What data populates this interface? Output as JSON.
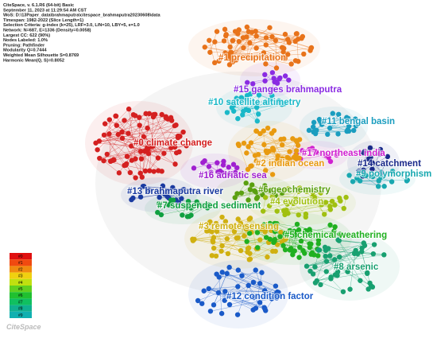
{
  "header": {
    "lines": [
      "CiteSpace, v. 6.1.R6 (64-bit) Basic",
      "September 11, 2023 at 11:29:54 AM CST",
      "WoS: D:\\13Paper_data\\brahmaputra\\citespace_brahmaputra20230608\\data",
      "Timespan: 1982-2022 (Slice Length=1)",
      "Selection Criteria: g-index (k=25), LRF=3.0, L/N=10, LBY=5, e=1.0",
      "Network: N=687, E=1336 (Density=0.0058)",
      "Largest CC: 622 (90%)",
      "Nodes Labeled: 1.0%",
      "Pruning: Pathfinder",
      "Modularity Q=0.7444",
      "Weighted Mean Silhouette S=0.8769",
      "Harmonic Mean(Q, S)=0.8052"
    ]
  },
  "clusters": [
    {
      "label": "#1 precipitation",
      "color": "#e8731a"
    },
    {
      "label": "#15 ganges brahmaputra",
      "color": "#8a2be2"
    },
    {
      "label": "#10 satellite altimetry",
      "color": "#1ab8c8"
    },
    {
      "label": "#0 climate change",
      "color": "#d42020"
    },
    {
      "label": "#11 bengal basin",
      "color": "#1a9dbf"
    },
    {
      "label": "#17 northeast india",
      "color": "#d020d0"
    },
    {
      "label": "#2 indian ocean",
      "color": "#e89a10"
    },
    {
      "label": "#14 catchment",
      "color": "#1a2a8a"
    },
    {
      "label": "#16 adriatic sea",
      "color": "#a020d0"
    },
    {
      "label": "#9 polymorphism",
      "color": "#18a8b0"
    },
    {
      "label": "#13 brahmaputra river",
      "color": "#1a3aa0"
    },
    {
      "label": "#6 geochemistry",
      "color": "#5aa010"
    },
    {
      "label": "#4 evolution",
      "color": "#a0c010"
    },
    {
      "label": "#7 suspended sediment",
      "color": "#10a040"
    },
    {
      "label": "#3 remote sensing",
      "color": "#d0b010"
    },
    {
      "label": "#5 chemical weathering",
      "color": "#20b020"
    },
    {
      "label": "#8 arsenic",
      "color": "#18a070"
    },
    {
      "label": "#12 condition factor",
      "color": "#1a5ac8"
    }
  ],
  "legend": {
    "items": [
      "#0",
      "#1",
      "#2",
      "#3",
      "#4",
      "#5",
      "#6",
      "#7",
      "#8",
      "#9"
    ],
    "colors": [
      "#e01010",
      "#f04a10",
      "#f08a10",
      "#f0d010",
      "#c0e010",
      "#60d020",
      "#20c030",
      "#10c060",
      "#10b090",
      "#10b0b0"
    ]
  },
  "logo": "CiteSpace"
}
